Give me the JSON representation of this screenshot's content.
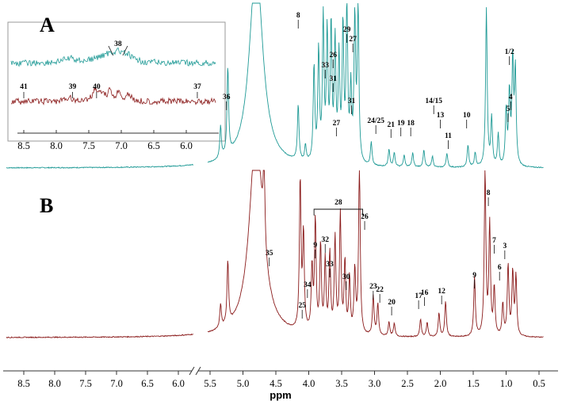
{
  "chart_data": {
    "type": "line",
    "xlabel": "ppm",
    "x_axis_reversed": true,
    "x_axis_break": [
      5.55,
      5.75
    ],
    "x_ticks": [
      "8.5",
      "8.0",
      "7.5",
      "7.0",
      "6.5",
      "6.0",
      "5.5",
      "5.0",
      "4.5",
      "4.0",
      "3.5",
      "3.0",
      "2.5",
      "2.0",
      "1.5",
      "1.0",
      "0.5"
    ],
    "x_ticks_values": [
      8.5,
      8.0,
      7.5,
      7.0,
      6.5,
      6.0,
      5.5,
      5.0,
      4.5,
      4.0,
      3.5,
      3.0,
      2.5,
      2.0,
      1.5,
      1.0,
      0.5
    ],
    "colors": {
      "A": "#1f9a96",
      "B": "#8a1a1a"
    },
    "panels": [
      {
        "letter": "A",
        "series": "A"
      },
      {
        "letter": "B",
        "series": "B"
      }
    ],
    "inset": {
      "x_ticks": [
        "8.5",
        "8.0",
        "7.5",
        "7.0",
        "6.5",
        "6.0"
      ],
      "x_ticks_values": [
        8.5,
        8.0,
        7.5,
        7.0,
        6.5,
        6.0
      ],
      "labels_A": [
        {
          "text": "38",
          "ppm": 7.05
        }
      ],
      "labels_B": [
        {
          "text": "41",
          "ppm": 8.5
        },
        {
          "text": "39",
          "ppm": 7.75
        },
        {
          "text": "40",
          "ppm": 7.38
        },
        {
          "text": "37",
          "ppm": 5.83
        }
      ]
    },
    "labels_A": [
      {
        "text": "36",
        "ppm": 5.25
      },
      {
        "text": "8",
        "ppm": 4.16
      },
      {
        "text": "33",
        "ppm": 3.75
      },
      {
        "text": "26",
        "ppm": 3.63
      },
      {
        "text": "31",
        "ppm": 3.63
      },
      {
        "text": "29",
        "ppm": 3.42
      },
      {
        "text": "27",
        "ppm": 3.33
      },
      {
        "text": "27",
        "ppm": 3.58
      },
      {
        "text": "31",
        "ppm": 3.35
      },
      {
        "text": "24/25",
        "ppm": 2.98
      },
      {
        "text": "21",
        "ppm": 2.75
      },
      {
        "text": "19",
        "ppm": 2.6
      },
      {
        "text": "18",
        "ppm": 2.45
      },
      {
        "text": "14/15",
        "ppm": 2.1
      },
      {
        "text": "13",
        "ppm": 2.0
      },
      {
        "text": "11",
        "ppm": 1.88
      },
      {
        "text": "10",
        "ppm": 1.6
      },
      {
        "text": "1/2",
        "ppm": 0.95
      },
      {
        "text": "4",
        "ppm": 0.93
      },
      {
        "text": "5",
        "ppm": 0.97
      }
    ],
    "labels_B": [
      {
        "text": "28",
        "ppm": 3.55
      },
      {
        "text": "35",
        "ppm": 4.6
      },
      {
        "text": "9",
        "ppm": 3.9
      },
      {
        "text": "32",
        "ppm": 3.75
      },
      {
        "text": "33",
        "ppm": 3.68
      },
      {
        "text": "26",
        "ppm": 3.15
      },
      {
        "text": "34",
        "ppm": 4.02
      },
      {
        "text": "25",
        "ppm": 4.1
      },
      {
        "text": "30",
        "ppm": 3.43
      },
      {
        "text": "23",
        "ppm": 3.02
      },
      {
        "text": "22",
        "ppm": 2.92
      },
      {
        "text": "20",
        "ppm": 2.74
      },
      {
        "text": "17",
        "ppm": 2.33
      },
      {
        "text": "16",
        "ppm": 2.24
      },
      {
        "text": "12",
        "ppm": 1.98
      },
      {
        "text": "9",
        "ppm": 1.48
      },
      {
        "text": "8",
        "ppm": 1.27
      },
      {
        "text": "7",
        "ppm": 1.18
      },
      {
        "text": "6",
        "ppm": 1.1
      },
      {
        "text": "3",
        "ppm": 1.02
      }
    ],
    "peaks_A": [
      {
        "ppm": 5.34,
        "h": 40
      },
      {
        "ppm": 5.23,
        "h": 110
      },
      {
        "ppm": 4.16,
        "h": 70
      },
      {
        "ppm": 4.05,
        "h": 20
      },
      {
        "ppm": 3.92,
        "h": 120
      },
      {
        "ppm": 3.85,
        "h": 140
      },
      {
        "ppm": 3.78,
        "h": 180
      },
      {
        "ppm": 3.72,
        "h": 160
      },
      {
        "ppm": 3.66,
        "h": 170
      },
      {
        "ppm": 3.6,
        "h": 150
      },
      {
        "ppm": 3.54,
        "h": 130
      },
      {
        "ppm": 3.48,
        "h": 170
      },
      {
        "ppm": 3.42,
        "h": 200
      },
      {
        "ppm": 3.36,
        "h": 90
      },
      {
        "ppm": 3.3,
        "h": 180
      },
      {
        "ppm": 3.25,
        "h": 200
      },
      {
        "ppm": 3.05,
        "h": 30
      },
      {
        "ppm": 2.78,
        "h": 22
      },
      {
        "ppm": 2.7,
        "h": 18
      },
      {
        "ppm": 2.55,
        "h": 15
      },
      {
        "ppm": 2.42,
        "h": 18
      },
      {
        "ppm": 2.25,
        "h": 22
      },
      {
        "ppm": 2.12,
        "h": 14
      },
      {
        "ppm": 1.9,
        "h": 18
      },
      {
        "ppm": 1.58,
        "h": 28
      },
      {
        "ppm": 1.47,
        "h": 18
      },
      {
        "ppm": 1.3,
        "h": 200
      },
      {
        "ppm": 1.22,
        "h": 60
      },
      {
        "ppm": 1.12,
        "h": 40
      },
      {
        "ppm": 1.0,
        "h": 70
      },
      {
        "ppm": 0.95,
        "h": 90
      },
      {
        "ppm": 0.9,
        "h": 130
      },
      {
        "ppm": 0.86,
        "h": 120
      }
    ],
    "peaks_B": [
      {
        "ppm": 5.34,
        "h": 30
      },
      {
        "ppm": 5.23,
        "h": 80
      },
      {
        "ppm": 4.68,
        "h": 110
      },
      {
        "ppm": 4.13,
        "h": 190
      },
      {
        "ppm": 4.08,
        "h": 120
      },
      {
        "ppm": 3.95,
        "h": 80
      },
      {
        "ppm": 3.9,
        "h": 140
      },
      {
        "ppm": 3.82,
        "h": 110
      },
      {
        "ppm": 3.75,
        "h": 90
      },
      {
        "ppm": 3.68,
        "h": 100
      },
      {
        "ppm": 3.6,
        "h": 120
      },
      {
        "ppm": 3.52,
        "h": 150
      },
      {
        "ppm": 3.45,
        "h": 90
      },
      {
        "ppm": 3.38,
        "h": 70
      },
      {
        "ppm": 3.3,
        "h": 80
      },
      {
        "ppm": 3.23,
        "h": 220
      },
      {
        "ppm": 3.02,
        "h": 50
      },
      {
        "ppm": 2.95,
        "h": 40
      },
      {
        "ppm": 2.78,
        "h": 18
      },
      {
        "ppm": 2.7,
        "h": 16
      },
      {
        "ppm": 2.3,
        "h": 22
      },
      {
        "ppm": 2.2,
        "h": 18
      },
      {
        "ppm": 2.02,
        "h": 30
      },
      {
        "ppm": 1.92,
        "h": 45
      },
      {
        "ppm": 1.48,
        "h": 75
      },
      {
        "ppm": 1.32,
        "h": 210
      },
      {
        "ppm": 1.25,
        "h": 140
      },
      {
        "ppm": 1.18,
        "h": 60
      },
      {
        "ppm": 1.05,
        "h": 40
      },
      {
        "ppm": 0.97,
        "h": 90
      },
      {
        "ppm": 0.9,
        "h": 80
      },
      {
        "ppm": 0.85,
        "h": 75
      }
    ]
  }
}
